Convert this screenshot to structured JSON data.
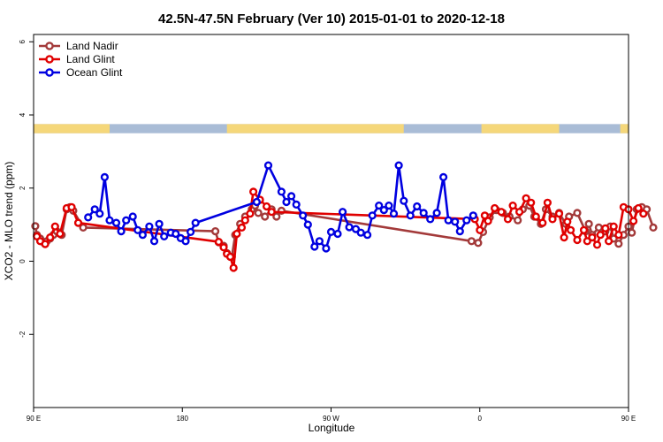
{
  "chart_data": {
    "type": "line",
    "title": "42.5N-47.5N February (Ver 10)   2015-01-01 to 2020-12-18",
    "xlabel": "Longitude",
    "ylabel": "XCO2 - MLO trend (ppm)",
    "xlim": [
      90,
      450
    ],
    "ylim": [
      -4,
      6.2
    ],
    "x_ticks": [
      {
        "value": 90,
        "label": "90 E"
      },
      {
        "value": 180,
        "label": "180"
      },
      {
        "value": 270,
        "label": "90 W"
      },
      {
        "value": 360,
        "label": "0"
      },
      {
        "value": 450,
        "label": "90 E"
      },
      {
        "value": 540,
        "label": "180"
      }
    ],
    "y_ticks": [
      {
        "value": -2,
        "label": "-2"
      },
      {
        "value": 0,
        "label": "0"
      },
      {
        "value": 2,
        "label": "2"
      },
      {
        "value": 4,
        "label": "4"
      },
      {
        "value": 6,
        "label": "6"
      }
    ],
    "grid": false,
    "legend_position": "top-left",
    "land_ocean_band": {
      "y_range": [
        3.5,
        3.75
      ],
      "land_color": "#f5d77a",
      "ocean_color": "#a9bcd6",
      "land_segments": [
        [
          90,
          136
        ],
        [
          207,
          314
        ],
        [
          361,
          408
        ],
        [
          445,
          500
        ],
        [
          567,
          630
        ]
      ]
    },
    "series": [
      {
        "name": "Land Nadir",
        "color": "#a33a3a",
        "points": [
          [
            91,
            0.96
          ],
          [
            92,
            0.72
          ],
          [
            94,
            0.62
          ],
          [
            96,
            0.52
          ],
          [
            98,
            0.55
          ],
          [
            100,
            0.62
          ],
          [
            102,
            0.72
          ],
          [
            104,
            0.82
          ],
          [
            107,
            0.72
          ],
          [
            110,
            1.42
          ],
          [
            112,
            1.48
          ],
          [
            114,
            1.38
          ],
          [
            120,
            0.92
          ],
          [
            200,
            0.82
          ],
          [
            202,
            0.52
          ],
          [
            205,
            0.42
          ],
          [
            207,
            0.22
          ],
          [
            210,
            0.12
          ],
          [
            212,
            0.72
          ],
          [
            215,
            1.02
          ],
          [
            218,
            1.22
          ],
          [
            222,
            1.42
          ],
          [
            224,
            1.52
          ],
          [
            226,
            1.32
          ],
          [
            230,
            1.22
          ],
          [
            234,
            1.42
          ],
          [
            237,
            1.22
          ],
          [
            240,
            1.38
          ],
          [
            355,
            0.55
          ],
          [
            359,
            0.5
          ],
          [
            362,
            0.8
          ],
          [
            366,
            1.2
          ],
          [
            370,
            1.4
          ],
          [
            374,
            1.32
          ],
          [
            378,
            1.22
          ],
          [
            383,
            1.12
          ],
          [
            386,
            1.42
          ],
          [
            390,
            1.52
          ],
          [
            393,
            1.22
          ],
          [
            397,
            1.02
          ],
          [
            400,
            1.42
          ],
          [
            404,
            1.22
          ],
          [
            408,
            1.32
          ],
          [
            412,
            1.02
          ],
          [
            414,
            1.22
          ],
          [
            419,
            1.32
          ],
          [
            424,
            0.82
          ],
          [
            426,
            1.02
          ],
          [
            428,
            0.72
          ],
          [
            432,
            0.92
          ],
          [
            436,
            0.82
          ],
          [
            439,
            0.95
          ],
          [
            441,
            0.62
          ],
          [
            444,
            0.48
          ],
          [
            447,
            0.72
          ],
          [
            450,
            0.95
          ],
          [
            452,
            0.78
          ],
          [
            455,
            1.42
          ],
          [
            458,
            1.48
          ],
          [
            461,
            1.42
          ],
          [
            465,
            0.92
          ]
        ]
      },
      {
        "name": "Land Glint",
        "color": "#e00000",
        "points": [
          [
            92,
            0.68
          ],
          [
            94,
            0.55
          ],
          [
            97,
            0.47
          ],
          [
            100,
            0.65
          ],
          [
            103,
            0.95
          ],
          [
            106,
            0.75
          ],
          [
            110,
            1.45
          ],
          [
            113,
            1.48
          ],
          [
            117,
            1.05
          ],
          [
            202,
            0.53
          ],
          [
            205,
            0.38
          ],
          [
            207,
            0.2
          ],
          [
            209,
            0.12
          ],
          [
            211,
            -0.18
          ],
          [
            213,
            0.75
          ],
          [
            216,
            0.92
          ],
          [
            218,
            1.12
          ],
          [
            221,
            1.3
          ],
          [
            223,
            1.9
          ],
          [
            227,
            1.68
          ],
          [
            231,
            1.5
          ],
          [
            234,
            1.35
          ],
          [
            357,
            1.15
          ],
          [
            360,
            0.85
          ],
          [
            363,
            1.25
          ],
          [
            365,
            1.1
          ],
          [
            369,
            1.45
          ],
          [
            373,
            1.35
          ],
          [
            377,
            1.15
          ],
          [
            380,
            1.52
          ],
          [
            384,
            1.35
          ],
          [
            388,
            1.72
          ],
          [
            391,
            1.6
          ],
          [
            394,
            1.22
          ],
          [
            398,
            1.05
          ],
          [
            401,
            1.6
          ],
          [
            404,
            1.15
          ],
          [
            408,
            1.3
          ],
          [
            411,
            0.65
          ],
          [
            413,
            1.08
          ],
          [
            415,
            0.85
          ],
          [
            419,
            0.58
          ],
          [
            423,
            0.85
          ],
          [
            425,
            0.55
          ],
          [
            428,
            0.65
          ],
          [
            431,
            0.45
          ],
          [
            433,
            0.72
          ],
          [
            436,
            0.9
          ],
          [
            438,
            0.55
          ],
          [
            441,
            0.95
          ],
          [
            444,
            0.72
          ],
          [
            447,
            1.48
          ],
          [
            450,
            1.42
          ],
          [
            453,
            1.1
          ],
          [
            456,
            1.45
          ],
          [
            459,
            1.3
          ]
        ]
      },
      {
        "name": "Ocean Glint",
        "color": "#0000e0",
        "points": [
          [
            123,
            1.2
          ],
          [
            127,
            1.42
          ],
          [
            130,
            1.3
          ],
          [
            133,
            2.3
          ],
          [
            136,
            1.12
          ],
          [
            140,
            1.05
          ],
          [
            143,
            0.82
          ],
          [
            146,
            1.12
          ],
          [
            150,
            1.22
          ],
          [
            153,
            0.85
          ],
          [
            156,
            0.72
          ],
          [
            160,
            0.95
          ],
          [
            163,
            0.55
          ],
          [
            166,
            1.02
          ],
          [
            169,
            0.68
          ],
          [
            173,
            0.78
          ],
          [
            176,
            0.75
          ],
          [
            179,
            0.63
          ],
          [
            182,
            0.55
          ],
          [
            185,
            0.8
          ],
          [
            188,
            1.05
          ],
          [
            225,
            1.62
          ],
          [
            232,
            2.62
          ],
          [
            240,
            1.9
          ],
          [
            243,
            1.62
          ],
          [
            246,
            1.78
          ],
          [
            249,
            1.55
          ],
          [
            253,
            1.25
          ],
          [
            256,
            1.0
          ],
          [
            260,
            0.4
          ],
          [
            263,
            0.55
          ],
          [
            267,
            0.35
          ],
          [
            270,
            0.8
          ],
          [
            274,
            0.75
          ],
          [
            277,
            1.35
          ],
          [
            281,
            0.93
          ],
          [
            285,
            0.88
          ],
          [
            288,
            0.78
          ],
          [
            292,
            0.72
          ],
          [
            295,
            1.25
          ],
          [
            299,
            1.52
          ],
          [
            302,
            1.4
          ],
          [
            305,
            1.52
          ],
          [
            308,
            1.3
          ],
          [
            311,
            2.62
          ],
          [
            314,
            1.65
          ],
          [
            318,
            1.25
          ],
          [
            322,
            1.5
          ],
          [
            326,
            1.32
          ],
          [
            330,
            1.15
          ],
          [
            334,
            1.32
          ],
          [
            338,
            2.3
          ],
          [
            341,
            1.12
          ],
          [
            345,
            1.08
          ],
          [
            348,
            0.82
          ],
          [
            352,
            1.12
          ],
          [
            356,
            1.25
          ]
        ]
      }
    ]
  }
}
